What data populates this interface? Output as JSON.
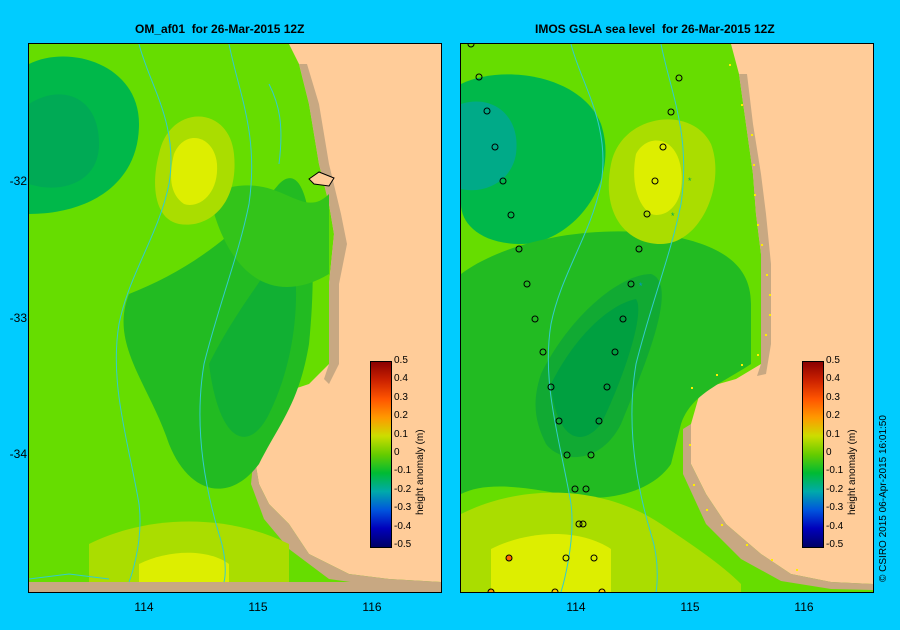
{
  "titles": {
    "left": "OM_af01  for 26-Mar-2015 12Z",
    "right": "IMOS GSLA sea level  for 26-Mar-2015 12Z"
  },
  "axes": {
    "latitude_ticks": [
      "-32",
      "-33",
      "-34"
    ],
    "longitude_ticks": [
      "114",
      "115",
      "116"
    ]
  },
  "colorbar": {
    "title": "height anomaly (m)",
    "labels": [
      "0.5",
      "0.4",
      "0.3",
      "0.2",
      "0.1",
      "0",
      "-0.1",
      "-0.2",
      "-0.3",
      "-0.4",
      "-0.5"
    ],
    "colors": [
      "#8b0000",
      "#cc2200",
      "#ff5500",
      "#ff9900",
      "#ccdd00",
      "#66cc00",
      "#00bb33",
      "#00aaaa",
      "#0055dd",
      "#0000bb",
      "#000066"
    ]
  },
  "credit": "© CSIRO 2015   06-Apr-2015 16:01:50",
  "map_colors": {
    "ocean": "#ffcc99",
    "land": "#c8a882",
    "river": "#33cccc"
  }
}
